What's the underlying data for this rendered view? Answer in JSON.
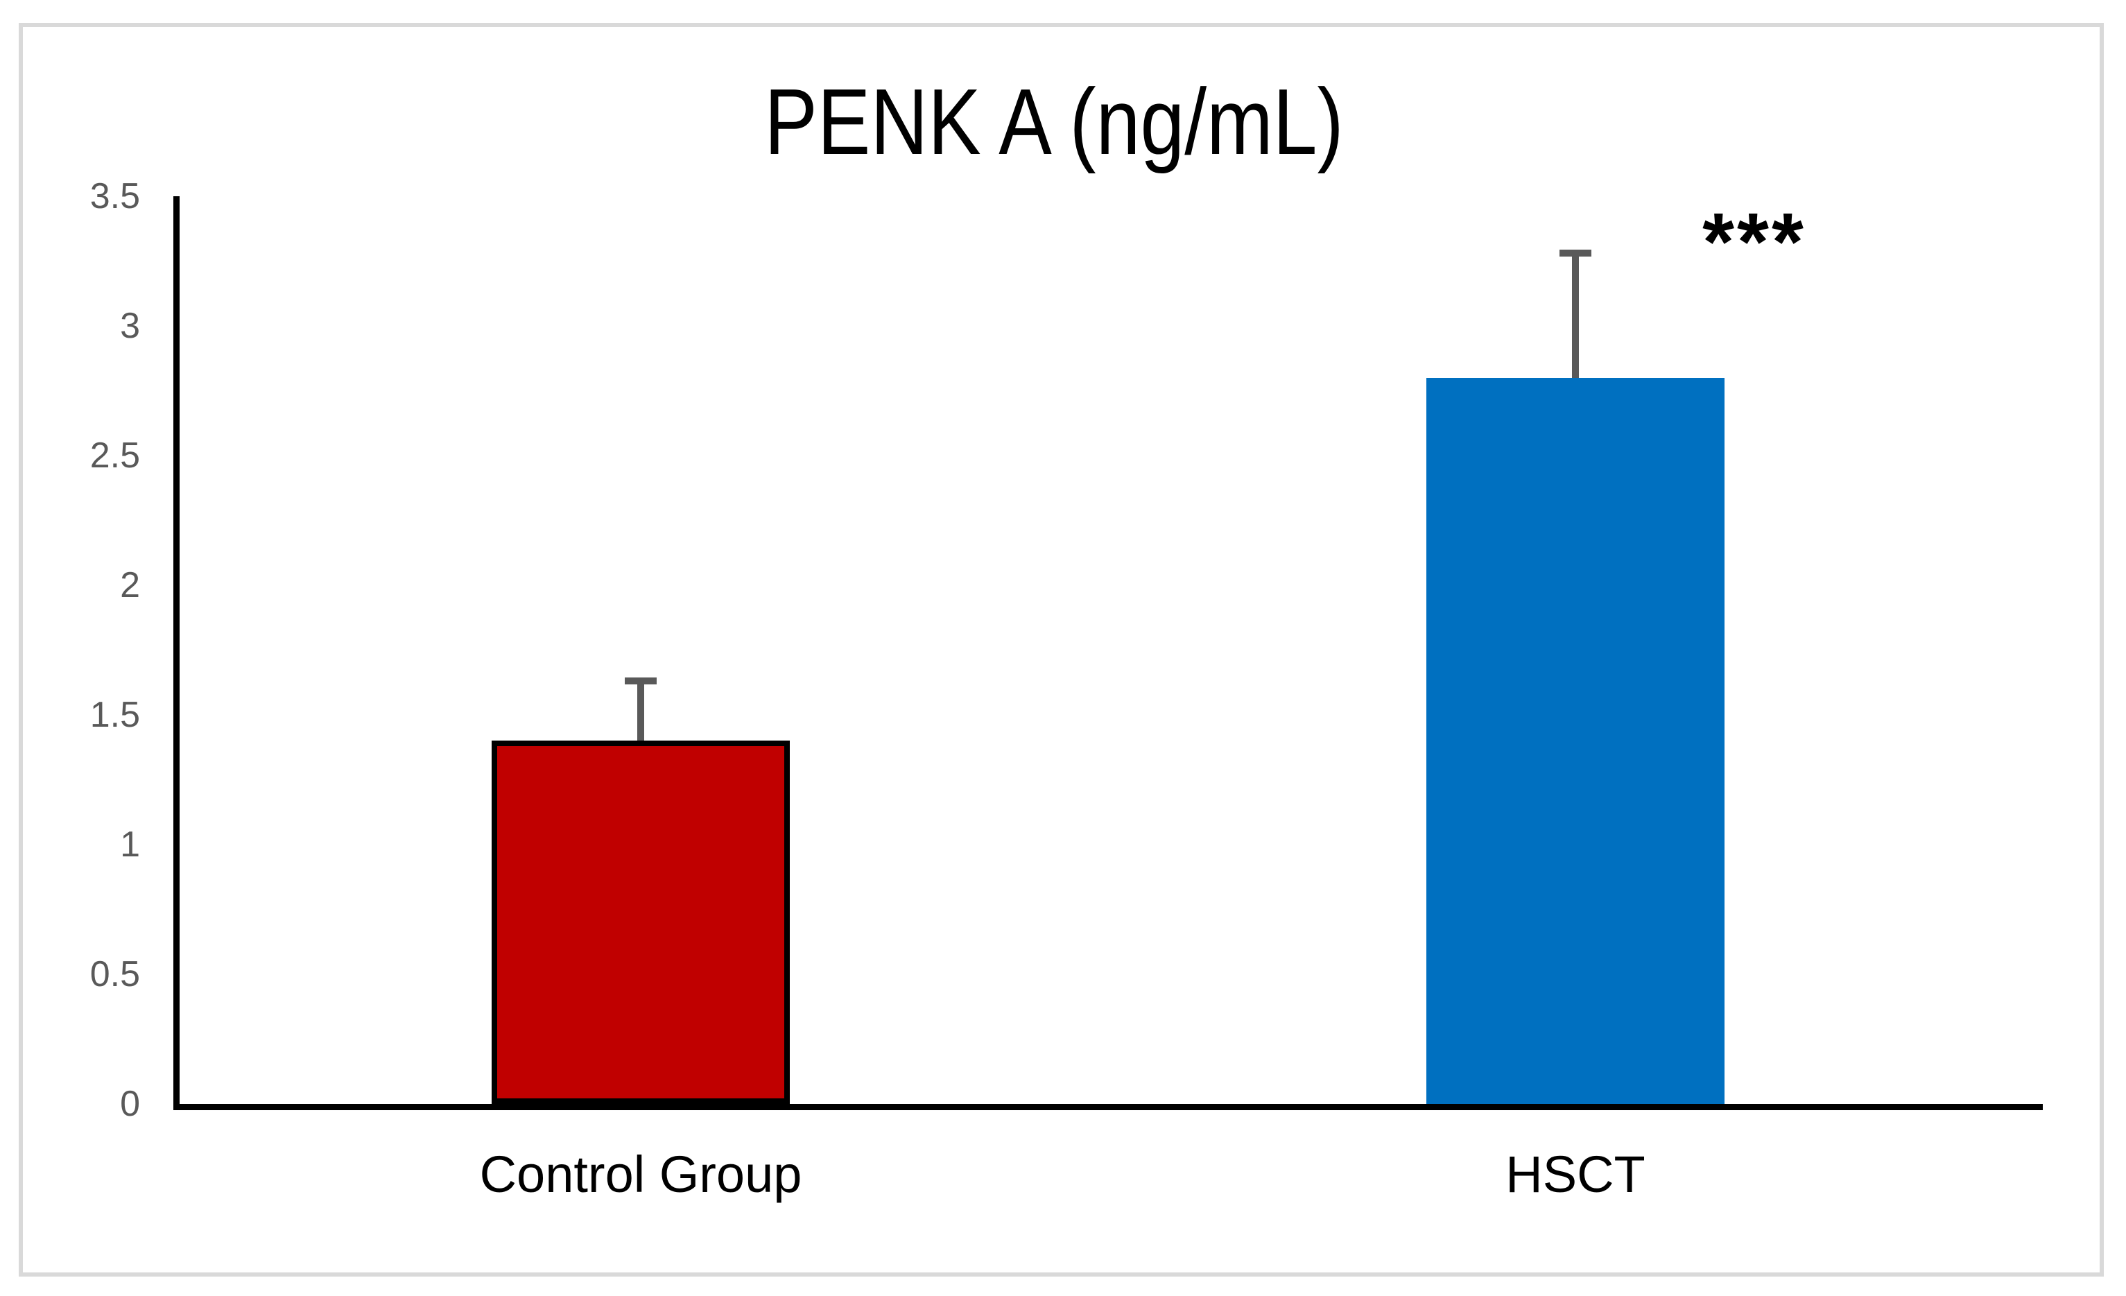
{
  "chart_data": {
    "type": "bar",
    "title": "PENK  A (ng/mL)",
    "xlabel": "",
    "ylabel": "",
    "ylim": [
      0,
      3.5
    ],
    "yticks": [
      "3.5",
      "3",
      "2.5",
      "2",
      "1.5",
      "1",
      "0.5",
      "0"
    ],
    "grid": false,
    "legend": "none",
    "categories": [
      "Control Group",
      "HSCT"
    ],
    "bars": [
      {
        "label": "Control Group",
        "value": 1.4,
        "error_upper": 0.23,
        "fill": "#c00000",
        "border_color": "#000000",
        "annotation": ""
      },
      {
        "label": "HSCT",
        "value": 2.8,
        "error_upper": 0.48,
        "fill": "#0070c0",
        "border_color": null,
        "annotation": "***"
      }
    ],
    "error_bar_color": "#595959",
    "axis_color": "#000000",
    "tick_label_color": "#595959",
    "frame_border_color": "#d9d9d9"
  }
}
